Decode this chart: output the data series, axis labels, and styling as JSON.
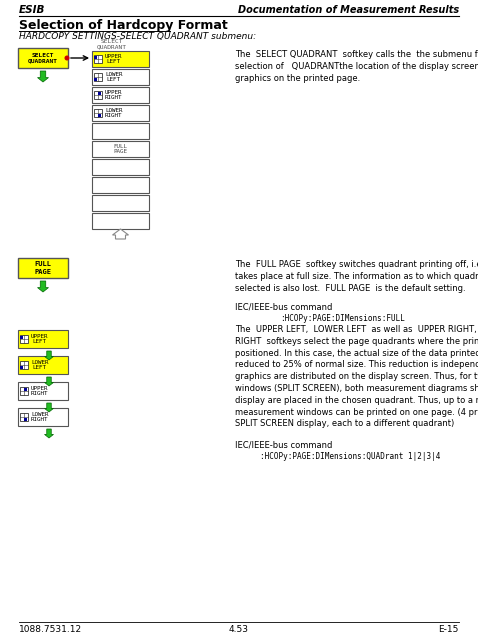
{
  "header_left": "ESIB",
  "header_right": "Documentation of Measurement Results",
  "title": "Selection of Hardcopy Format",
  "subtitle": "HARDCOPY SETTINGS-SELECT QUADRANT submenu:",
  "footer_left": "1088.7531.12",
  "footer_center": "4.53",
  "footer_right": "E-15",
  "yellow": "#FFFF00",
  "blue_sq": "#000099",
  "white": "#FFFFFF",
  "black": "#000000",
  "gray_text": "#666666",
  "para1_text_line1": "The  FULL PAGE  softkey switches quadrant printing off, i.e., printing now",
  "para1_text_line2": "takes place at full size. The information as to which quadrant was last",
  "para1_text_line3": "selected is also lost.  FULL PAGE  is the default setting.",
  "para1_cmd_label": "IEC/IEEE-bus command",
  "para1_cmd": "   :HCOPy:PAGE:DIMensions:FULL",
  "select_q_text": "The  SELECT QUADRANT  softkey calls the  the submenu for",
  "select_q_text2": "selection of   QUADRANTthe location of the display screen",
  "select_q_text3": "graphics on the printed page.",
  "para2_cmd": "      :HCOPy:PAGE:DIMensions:QUADrant 1|2|3|4"
}
